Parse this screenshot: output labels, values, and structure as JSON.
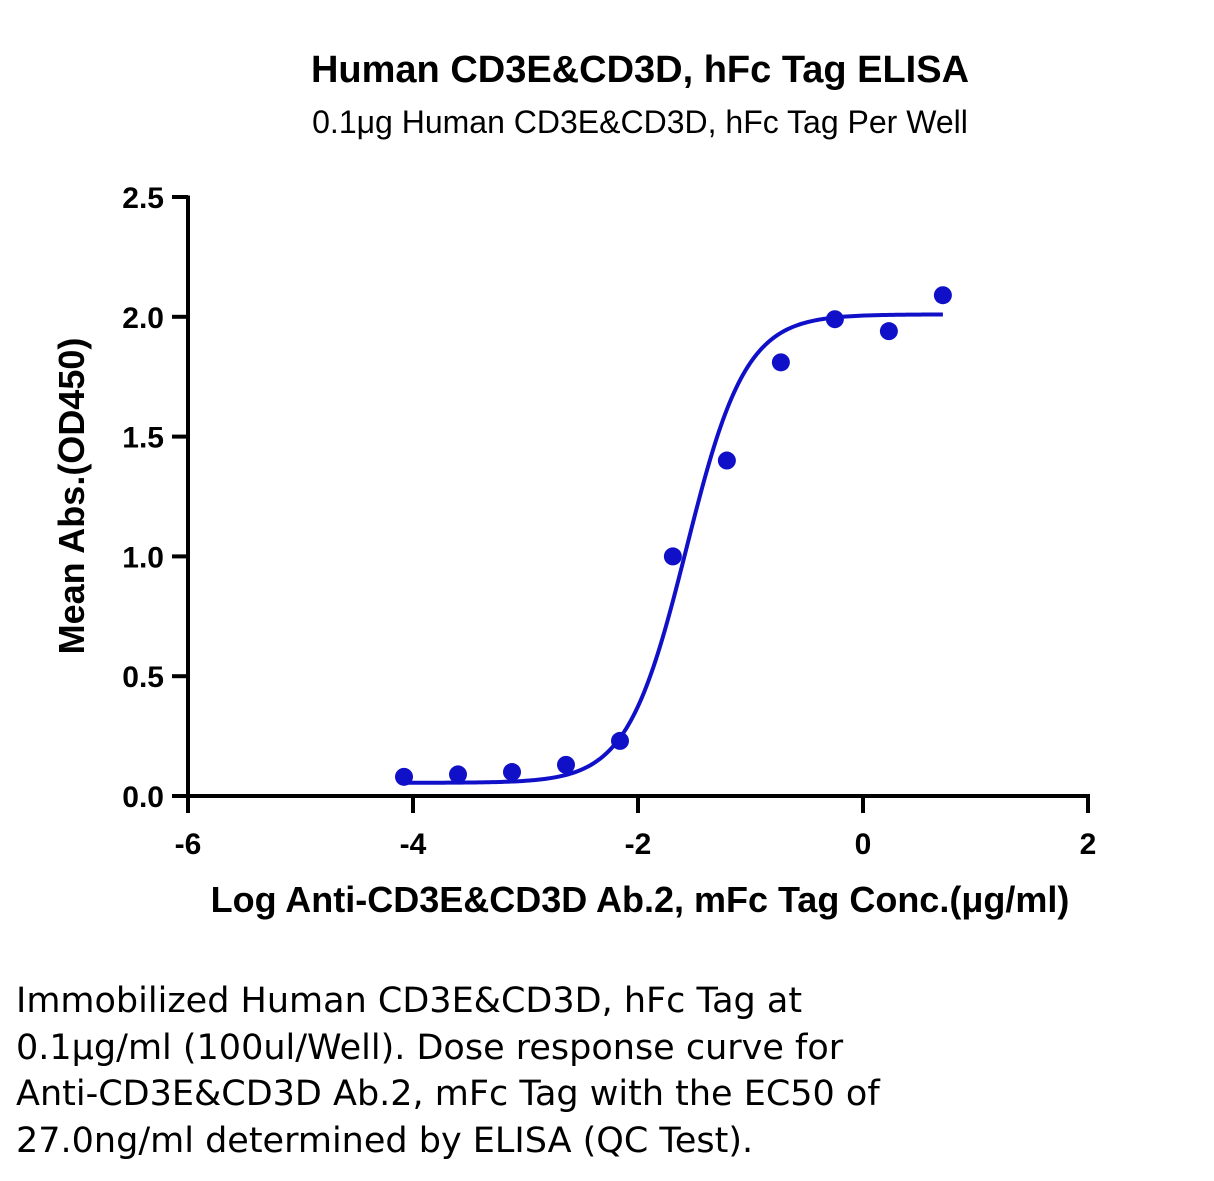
{
  "chart_data": {
    "type": "scatter",
    "title": "Human CD3E&CD3D, hFc Tag ELISA",
    "subtitle": "0.1μg Human CD3E&CD3D, hFc Tag  Per Well",
    "xlabel": "Log Anti-CD3E&CD3D Ab.2, mFc Tag Conc.(μg/ml)",
    "ylabel": "Mean Abs.(OD450)",
    "xlim": [
      -6,
      2
    ],
    "ylim": [
      0,
      2.5
    ],
    "x_ticks": [
      -6,
      -4,
      -2,
      0,
      2
    ],
    "x_tick_labels": [
      "-6",
      "-4",
      "-2",
      "0",
      "2"
    ],
    "y_ticks": [
      0,
      0.5,
      1.0,
      1.5,
      2.0,
      2.5
    ],
    "y_tick_labels": [
      "0.0",
      "0.5",
      "1.0",
      "1.5",
      "2.0",
      "2.5"
    ],
    "grid": false,
    "series": [
      {
        "points": [
          {
            "x": -4.08,
            "y": 0.08
          },
          {
            "x": -3.6,
            "y": 0.09
          },
          {
            "x": -3.12,
            "y": 0.1
          },
          {
            "x": -2.64,
            "y": 0.13
          },
          {
            "x": -2.16,
            "y": 0.23
          },
          {
            "x": -1.69,
            "y": 1.0
          },
          {
            "x": -1.21,
            "y": 1.4
          },
          {
            "x": -0.73,
            "y": 1.81
          },
          {
            "x": -0.25,
            "y": 1.99
          },
          {
            "x": 0.23,
            "y": 1.94
          },
          {
            "x": 0.71,
            "y": 2.09
          }
        ],
        "fit_curve": {
          "model": "4PL",
          "bottom": 0.055,
          "top": 2.01,
          "log_ec50": -1.57,
          "hill_slope": 1.65,
          "x_range": [
            -4.08,
            0.71
          ]
        }
      }
    ],
    "colors": {
      "series": "#1010C8",
      "axis": "#000000"
    }
  },
  "caption": "Immobilized Human CD3E&CD3D, hFc Tag at\n0.1μg/ml (100ul/Well). Dose response curve for\nAnti-CD3E&CD3D Ab.2, mFc Tag with the EC50 of\n27.0ng/ml determined by ELISA (QC Test)."
}
